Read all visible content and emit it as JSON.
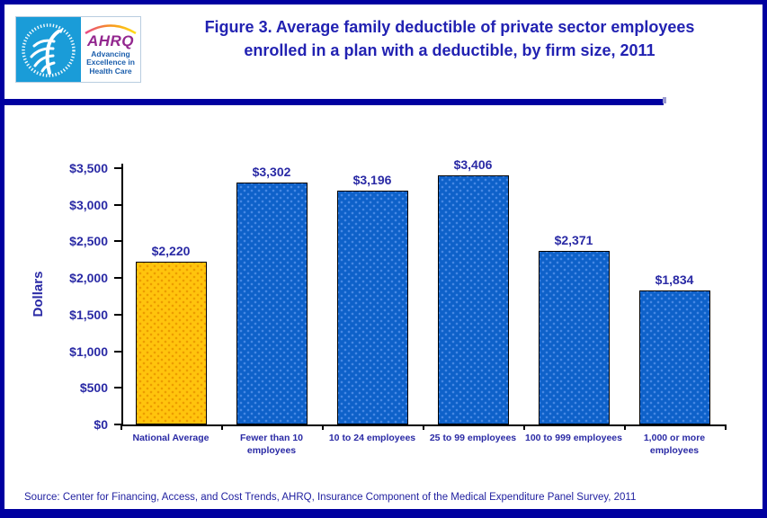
{
  "page": {
    "background": "#FFFFFF",
    "border_color": "#0000A0"
  },
  "header": {
    "title_lines": [
      "Figure 3. Average family deductible of private sector employees",
      "enrolled in a plan with a deductible, by firm size, 2011"
    ],
    "ahrq_logo": {
      "acronym": "AHRQ",
      "tagline": "Advancing Excellence in Health Care"
    }
  },
  "chart_data": {
    "type": "bar",
    "title": "Figure 3. Average family deductible of private sector employees enrolled in a plan with a deductible, by firm size, 2011",
    "xlabel": "",
    "ylabel": "Dollars",
    "ylim": [
      0,
      3500
    ],
    "ytick_step": 500,
    "ytick_labels": [
      "$0",
      "$500",
      "$1,000",
      "$1,500",
      "$2,000",
      "$2,500",
      "$3,000",
      "$3,500"
    ],
    "categories": [
      "National Average",
      "Fewer than 10 employees",
      "10 to 24 employees",
      "25 to 99 employees",
      "100 to 999 employees",
      "1,000 or more employees"
    ],
    "category_label_lines": [
      [
        "National Average"
      ],
      [
        "Fewer than 10",
        "employees"
      ],
      [
        "10 to 24 employees"
      ],
      [
        "25 to 99 employees"
      ],
      [
        "100 to 999 employees"
      ],
      [
        "1,000 or more",
        "employees"
      ]
    ],
    "values": [
      2220,
      3302,
      3196,
      3406,
      2371,
      1834
    ],
    "value_labels": [
      "$2,220",
      "$3,302",
      "$3,196",
      "$3,406",
      "$2,371",
      "$1,834"
    ],
    "highlight_index": 0,
    "colors": {
      "highlight_bar": "#FFC40D",
      "default_bar": "#0E61C9",
      "text": "#2A2AA5"
    },
    "grid": false,
    "legend": false
  },
  "footer": {
    "source": "Source: Center for Financing, Access, and Cost Trends, AHRQ, Insurance Component of the Medical Expenditure Panel Survey, 2011"
  }
}
